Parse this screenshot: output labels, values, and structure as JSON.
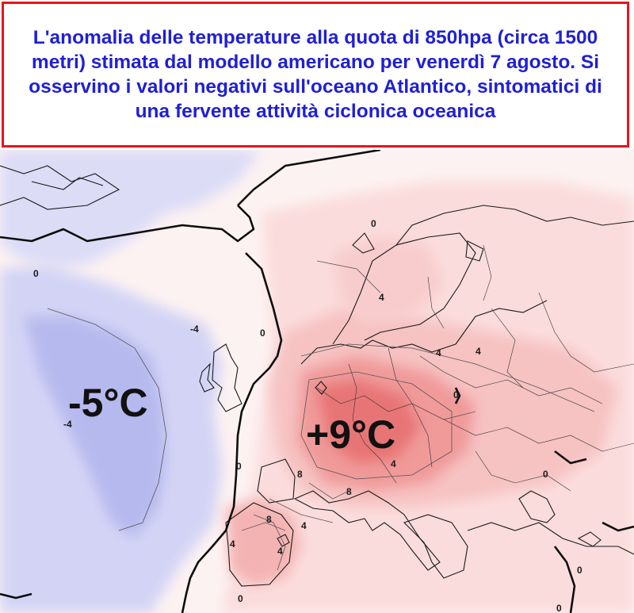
{
  "caption": {
    "text": "L'anomalia delle temperature alla quota di 850hpa (circa 1500 metri) stimata dal modello americano per venerdì 7 agosto. Si osservino i valori negativi sull'oceano Atlantico, sintomatici di una fervente attività ciclonica oceanica",
    "color": "#1f1fd6",
    "border_color": "#e8141c"
  },
  "map": {
    "negative_label": "-5°C",
    "positive_label": "+9°C",
    "isoline_labels": [
      "0",
      "0",
      "-4",
      "-4",
      "0",
      "4",
      "0",
      "0",
      "8",
      "8",
      "4",
      "4",
      "4",
      "4",
      "8",
      "4",
      "0",
      "0",
      "4",
      "0",
      "0"
    ],
    "colors": {
      "negative": "#b9bdf0",
      "negative_light": "#dcdcf7",
      "positive_light": "#fbe3e3",
      "positive_mid": "#f5bcbc",
      "positive_strong": "#ef8f8f",
      "positive_max": "#e86f6f"
    }
  }
}
